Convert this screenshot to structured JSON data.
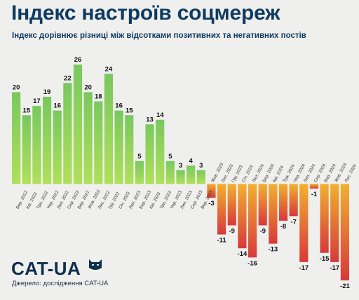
{
  "title": "Індекс настроїв соцмереж",
  "subtitle": "Індекс дорівнює різниці між відсотками позитивних та негативних постів",
  "brand": "CAT-UA",
  "source": "Джерело: дослідження CAT-UA",
  "colors": {
    "title": "#0f3b62",
    "positive_top": "#78c85e",
    "positive_bottom": "#b0e05a",
    "negative_top": "#f2b02f",
    "negative_bottom": "#d7393a"
  },
  "chart_data": {
    "type": "bar",
    "categories": [
      "Бер. 2022",
      "Кві. 2022",
      "Тра. 2022",
      "Чер. 2022",
      "Лип. 2022",
      "Сер. 2022",
      "Вер. 2022",
      "Жов. 2022",
      "Лис. 2022",
      "Гру. 2022",
      "Січ. 2023",
      "Лют. 2023",
      "Бер. 2023",
      "Кві. 2023",
      "Тра. 2023",
      "Чер. 2023",
      "Лип. 2023",
      "Сер. 2023",
      "Вер. 2023",
      "Жов. 2023",
      "Лис. 2023",
      "Гру. 2023",
      "Січ. 2024",
      "Лют. 2024",
      "Бер. 2024",
      "Кві. 2024",
      "Тра. 2024",
      "Чер. 2024",
      "Лип. 2024",
      "Сер. 2024",
      "Вер. 2024",
      "Жов. 2024",
      "Лис. 2024"
    ],
    "values": [
      20,
      15,
      17,
      19,
      16,
      22,
      26,
      20,
      18,
      24,
      16,
      15,
      5,
      13,
      14,
      5,
      3,
      4,
      3,
      -3,
      -11,
      -9,
      -14,
      -16,
      -9,
      -13,
      -8,
      -7,
      -17,
      -1,
      -15,
      -17,
      -21
    ],
    "ylim": [
      -22,
      27
    ]
  }
}
